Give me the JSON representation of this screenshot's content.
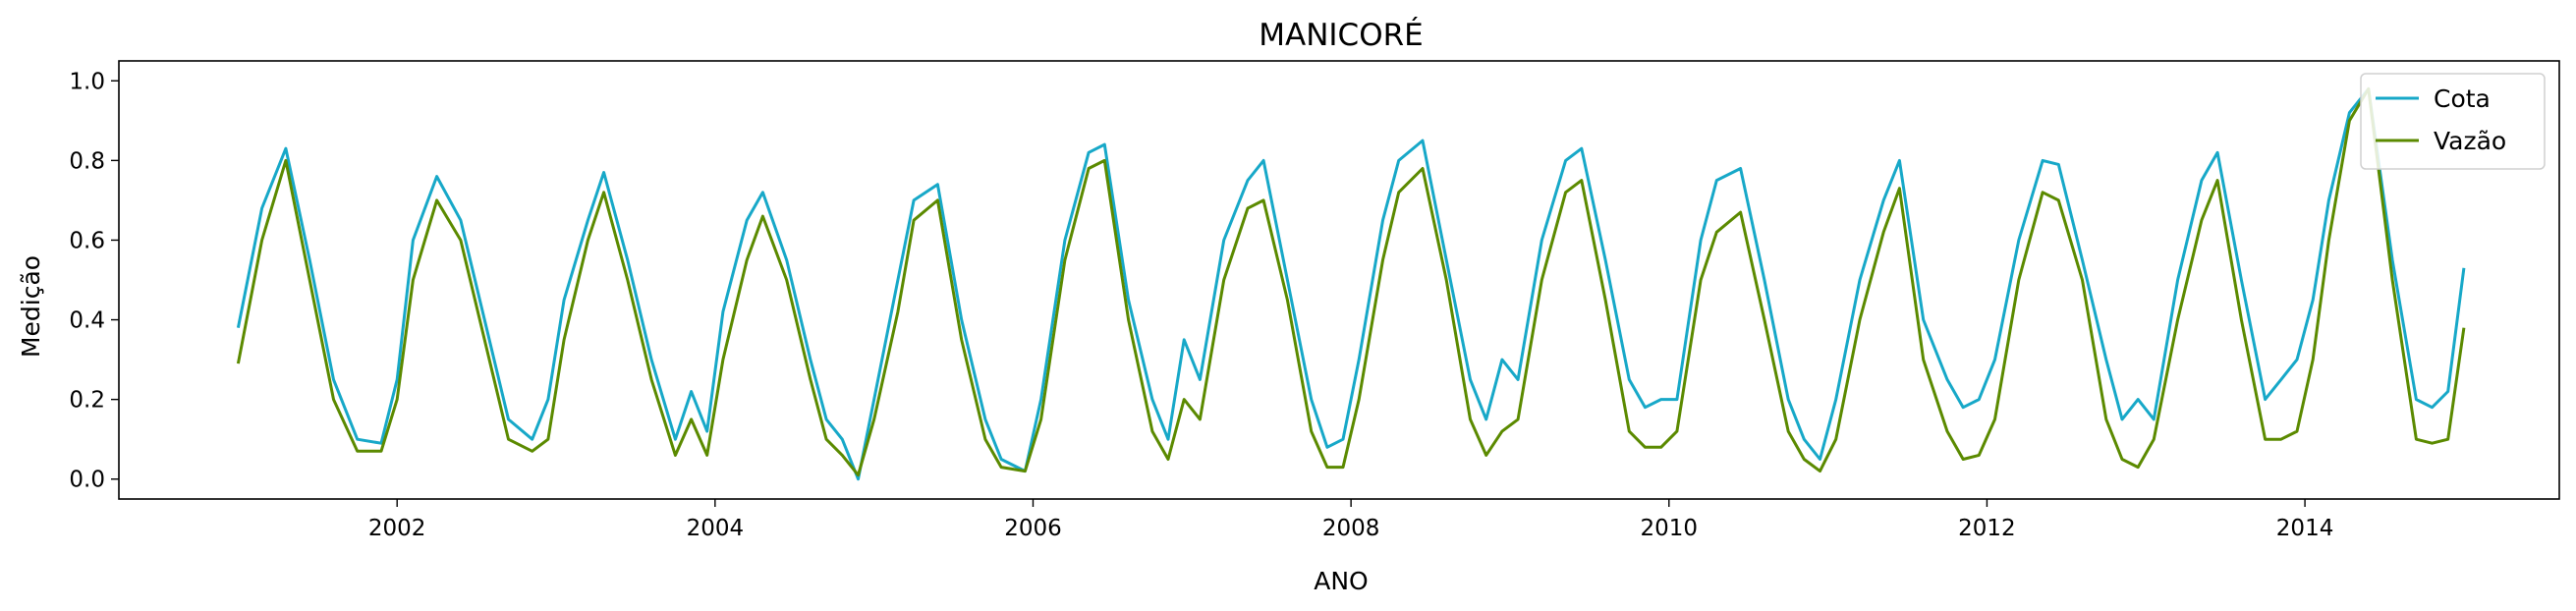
{
  "chart_data": {
    "type": "line",
    "title": "MANICORÉ",
    "xlabel": "ANO",
    "ylabel": "Medição",
    "xlim": [
      2000.25,
      2015.6
    ],
    "ylim": [
      -0.05,
      1.05
    ],
    "x_ticks": [
      2002,
      2004,
      2006,
      2008,
      2010,
      2012,
      2014
    ],
    "x_tick_labels": [
      "2002",
      "2004",
      "2006",
      "2008",
      "2010",
      "2012",
      "2014"
    ],
    "y_ticks": [
      0.0,
      0.2,
      0.4,
      0.6,
      0.8,
      1.0
    ],
    "y_tick_labels": [
      "0.0",
      "0.2",
      "0.4",
      "0.6",
      "0.8",
      "1.0"
    ],
    "legend_position": "top-right",
    "grid": false,
    "series": [
      {
        "name": "Cota",
        "color": "#17a8c8",
        "x": [
          2001.0,
          2001.15,
          2001.3,
          2001.45,
          2001.6,
          2001.75,
          2001.9,
          2002.0,
          2002.1,
          2002.25,
          2002.4,
          2002.55,
          2002.7,
          2002.85,
          2002.95,
          2003.05,
          2003.2,
          2003.3,
          2003.45,
          2003.6,
          2003.75,
          2003.85,
          2003.95,
          2004.05,
          2004.2,
          2004.3,
          2004.45,
          2004.6,
          2004.7,
          2004.8,
          2004.9,
          2005.0,
          2005.15,
          2005.25,
          2005.4,
          2005.55,
          2005.7,
          2005.8,
          2005.95,
          2006.05,
          2006.2,
          2006.35,
          2006.45,
          2006.6,
          2006.75,
          2006.85,
          2006.95,
          2007.05,
          2007.2,
          2007.35,
          2007.45,
          2007.6,
          2007.75,
          2007.85,
          2007.95,
          2008.05,
          2008.2,
          2008.3,
          2008.45,
          2008.6,
          2008.75,
          2008.85,
          2008.95,
          2009.05,
          2009.2,
          2009.35,
          2009.45,
          2009.6,
          2009.75,
          2009.85,
          2009.95,
          2010.05,
          2010.2,
          2010.3,
          2010.45,
          2010.6,
          2010.75,
          2010.85,
          2010.95,
          2011.05,
          2011.2,
          2011.35,
          2011.45,
          2011.6,
          2011.75,
          2011.85,
          2011.95,
          2012.05,
          2012.2,
          2012.35,
          2012.45,
          2012.6,
          2012.75,
          2012.85,
          2012.95,
          2013.05,
          2013.2,
          2013.35,
          2013.45,
          2013.6,
          2013.75,
          2013.85,
          2013.95,
          2014.05,
          2014.15,
          2014.28,
          2014.4,
          2014.55,
          2014.7,
          2014.8,
          2014.9,
          2015.0
        ],
        "values": [
          0.38,
          0.68,
          0.83,
          0.55,
          0.25,
          0.1,
          0.09,
          0.25,
          0.6,
          0.76,
          0.65,
          0.4,
          0.15,
          0.1,
          0.2,
          0.45,
          0.65,
          0.77,
          0.55,
          0.3,
          0.1,
          0.22,
          0.12,
          0.42,
          0.65,
          0.72,
          0.55,
          0.3,
          0.15,
          0.1,
          0.0,
          0.2,
          0.5,
          0.7,
          0.74,
          0.4,
          0.15,
          0.05,
          0.02,
          0.2,
          0.6,
          0.82,
          0.84,
          0.45,
          0.2,
          0.1,
          0.35,
          0.25,
          0.6,
          0.75,
          0.8,
          0.5,
          0.2,
          0.08,
          0.1,
          0.3,
          0.65,
          0.8,
          0.85,
          0.55,
          0.25,
          0.15,
          0.3,
          0.25,
          0.6,
          0.8,
          0.83,
          0.55,
          0.25,
          0.18,
          0.2,
          0.2,
          0.6,
          0.75,
          0.78,
          0.5,
          0.2,
          0.1,
          0.05,
          0.2,
          0.5,
          0.7,
          0.8,
          0.4,
          0.25,
          0.18,
          0.2,
          0.3,
          0.6,
          0.8,
          0.79,
          0.55,
          0.3,
          0.15,
          0.2,
          0.15,
          0.5,
          0.75,
          0.82,
          0.5,
          0.2,
          0.25,
          0.3,
          0.45,
          0.7,
          0.92,
          0.98,
          0.55,
          0.2,
          0.18,
          0.22,
          0.53
        ]
      },
      {
        "name": "Vazão",
        "color": "#5b8a00",
        "x": [
          2001.0,
          2001.15,
          2001.3,
          2001.45,
          2001.6,
          2001.75,
          2001.9,
          2002.0,
          2002.1,
          2002.25,
          2002.4,
          2002.55,
          2002.7,
          2002.85,
          2002.95,
          2003.05,
          2003.2,
          2003.3,
          2003.45,
          2003.6,
          2003.75,
          2003.85,
          2003.95,
          2004.05,
          2004.2,
          2004.3,
          2004.45,
          2004.6,
          2004.7,
          2004.8,
          2004.9,
          2005.0,
          2005.15,
          2005.25,
          2005.4,
          2005.55,
          2005.7,
          2005.8,
          2005.95,
          2006.05,
          2006.2,
          2006.35,
          2006.45,
          2006.6,
          2006.75,
          2006.85,
          2006.95,
          2007.05,
          2007.2,
          2007.35,
          2007.45,
          2007.6,
          2007.75,
          2007.85,
          2007.95,
          2008.05,
          2008.2,
          2008.3,
          2008.45,
          2008.6,
          2008.75,
          2008.85,
          2008.95,
          2009.05,
          2009.2,
          2009.35,
          2009.45,
          2009.6,
          2009.75,
          2009.85,
          2009.95,
          2010.05,
          2010.2,
          2010.3,
          2010.45,
          2010.6,
          2010.75,
          2010.85,
          2010.95,
          2011.05,
          2011.2,
          2011.35,
          2011.45,
          2011.6,
          2011.75,
          2011.85,
          2011.95,
          2012.05,
          2012.2,
          2012.35,
          2012.45,
          2012.6,
          2012.75,
          2012.85,
          2012.95,
          2013.05,
          2013.2,
          2013.35,
          2013.45,
          2013.6,
          2013.75,
          2013.85,
          2013.95,
          2014.05,
          2014.15,
          2014.28,
          2014.4,
          2014.55,
          2014.7,
          2014.8,
          2014.9,
          2015.0
        ],
        "values": [
          0.29,
          0.6,
          0.8,
          0.5,
          0.2,
          0.07,
          0.07,
          0.2,
          0.5,
          0.7,
          0.6,
          0.35,
          0.1,
          0.07,
          0.1,
          0.35,
          0.6,
          0.72,
          0.5,
          0.25,
          0.06,
          0.15,
          0.06,
          0.3,
          0.55,
          0.66,
          0.5,
          0.25,
          0.1,
          0.06,
          0.01,
          0.15,
          0.42,
          0.65,
          0.7,
          0.35,
          0.1,
          0.03,
          0.02,
          0.15,
          0.55,
          0.78,
          0.8,
          0.4,
          0.12,
          0.05,
          0.2,
          0.15,
          0.5,
          0.68,
          0.7,
          0.45,
          0.12,
          0.03,
          0.03,
          0.2,
          0.55,
          0.72,
          0.78,
          0.5,
          0.15,
          0.06,
          0.12,
          0.15,
          0.5,
          0.72,
          0.75,
          0.45,
          0.12,
          0.08,
          0.08,
          0.12,
          0.5,
          0.62,
          0.67,
          0.4,
          0.12,
          0.05,
          0.02,
          0.1,
          0.4,
          0.62,
          0.73,
          0.3,
          0.12,
          0.05,
          0.06,
          0.15,
          0.5,
          0.72,
          0.7,
          0.5,
          0.15,
          0.05,
          0.03,
          0.1,
          0.4,
          0.65,
          0.75,
          0.4,
          0.1,
          0.1,
          0.12,
          0.3,
          0.6,
          0.9,
          0.98,
          0.5,
          0.1,
          0.09,
          0.1,
          0.38
        ]
      }
    ]
  }
}
